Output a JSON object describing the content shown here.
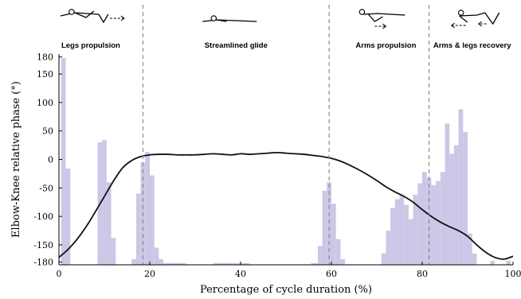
{
  "chart_data": {
    "type": "bar+line",
    "xlabel": "Percentage of cycle duration (%)",
    "ylabel": "Elbow-Knee relative phase (°)",
    "xlim": [
      0,
      100
    ],
    "ylim": [
      -185,
      185
    ],
    "x_ticks": [
      0,
      20,
      40,
      60,
      80,
      100
    ],
    "y_ticks": [
      180,
      150,
      100,
      50,
      0,
      -50,
      -100,
      -150,
      -180
    ],
    "grid": false,
    "phase_labels": [
      {
        "label": "Legs propulsion",
        "x_center": 7
      },
      {
        "label": "Streamlined glide",
        "x_center": 39
      },
      {
        "label": "Arms propulsion",
        "x_center": 72
      },
      {
        "label": "Arms & legs recovery",
        "x_center": 91
      }
    ],
    "phase_boundaries": [
      18.5,
      59.5,
      81.5
    ],
    "histogram": {
      "color": "#cac8e6",
      "baseline": -185,
      "bars": [
        {
          "x0": 0.5,
          "x1": 1.5,
          "y": 178
        },
        {
          "x0": 1.5,
          "x1": 2.5,
          "y": -16
        },
        {
          "x0": 8.5,
          "x1": 9.5,
          "y": 30
        },
        {
          "x0": 9.5,
          "x1": 10.5,
          "y": 34
        },
        {
          "x0": 10.5,
          "x1": 11.5,
          "y": -40
        },
        {
          "x0": 11.5,
          "x1": 12.5,
          "y": -138
        },
        {
          "x0": 16.0,
          "x1": 17.0,
          "y": -175
        },
        {
          "x0": 17.0,
          "x1": 18.0,
          "y": -60
        },
        {
          "x0": 18.0,
          "x1": 19.0,
          "y": -5
        },
        {
          "x0": 19.0,
          "x1": 20.0,
          "y": 13
        },
        {
          "x0": 20.0,
          "x1": 21.0,
          "y": -28
        },
        {
          "x0": 21.0,
          "x1": 22.0,
          "y": -155
        },
        {
          "x0": 22.0,
          "x1": 23.0,
          "y": -175
        },
        {
          "x0": 23.0,
          "x1": 28.0,
          "y": -182
        },
        {
          "x0": 34.0,
          "x1": 42.0,
          "y": -182
        },
        {
          "x0": 55.5,
          "x1": 57.0,
          "y": -182
        },
        {
          "x0": 57.0,
          "x1": 58.0,
          "y": -152
        },
        {
          "x0": 58.0,
          "x1": 59.0,
          "y": -55
        },
        {
          "x0": 59.0,
          "x1": 60.0,
          "y": -40
        },
        {
          "x0": 60.0,
          "x1": 61.0,
          "y": -78
        },
        {
          "x0": 61.0,
          "x1": 62.0,
          "y": -140
        },
        {
          "x0": 62.0,
          "x1": 63.0,
          "y": -175
        },
        {
          "x0": 71.0,
          "x1": 72.0,
          "y": -165
        },
        {
          "x0": 72.0,
          "x1": 73.0,
          "y": -125
        },
        {
          "x0": 73.0,
          "x1": 74.0,
          "y": -85
        },
        {
          "x0": 74.0,
          "x1": 75.0,
          "y": -70
        },
        {
          "x0": 75.0,
          "x1": 76.0,
          "y": -62
        },
        {
          "x0": 76.0,
          "x1": 77.0,
          "y": -80
        },
        {
          "x0": 77.0,
          "x1": 78.0,
          "y": -105
        },
        {
          "x0": 78.0,
          "x1": 79.0,
          "y": -62
        },
        {
          "x0": 79.0,
          "x1": 80.0,
          "y": -42
        },
        {
          "x0": 80.0,
          "x1": 81.0,
          "y": -22
        },
        {
          "x0": 81.0,
          "x1": 82.0,
          "y": -32
        },
        {
          "x0": 82.0,
          "x1": 83.0,
          "y": -45
        },
        {
          "x0": 83.0,
          "x1": 84.0,
          "y": -38
        },
        {
          "x0": 84.0,
          "x1": 85.0,
          "y": -22
        },
        {
          "x0": 85.0,
          "x1": 86.0,
          "y": 63
        },
        {
          "x0": 86.0,
          "x1": 87.0,
          "y": 10
        },
        {
          "x0": 87.0,
          "x1": 88.0,
          "y": 25
        },
        {
          "x0": 88.0,
          "x1": 89.0,
          "y": 88
        },
        {
          "x0": 89.0,
          "x1": 90.0,
          "y": 48
        },
        {
          "x0": 90.0,
          "x1": 91.0,
          "y": -130
        },
        {
          "x0": 91.0,
          "x1": 92.0,
          "y": -165
        },
        {
          "x0": 95.0,
          "x1": 96.0,
          "y": -178
        },
        {
          "x0": 98.5,
          "x1": 99.5,
          "y": -178
        }
      ]
    },
    "series": [
      {
        "color": "#111111",
        "x": [
          0,
          2,
          4,
          6,
          8,
          10,
          12,
          14,
          16,
          18,
          20,
          22,
          24,
          26,
          28,
          30,
          32,
          34,
          36,
          38,
          40,
          42,
          44,
          46,
          48,
          50,
          52,
          54,
          56,
          58,
          60,
          62,
          64,
          66,
          68,
          70,
          72,
          74,
          76,
          78,
          80,
          82,
          84,
          86,
          88,
          90,
          92,
          94,
          96,
          98,
          100
        ],
        "y": [
          -172,
          -158,
          -140,
          -118,
          -92,
          -65,
          -38,
          -15,
          -2,
          5,
          8,
          9,
          9,
          8,
          8,
          8,
          9,
          10,
          9,
          8,
          10,
          9,
          10,
          11,
          12,
          11,
          10,
          9,
          7,
          5,
          2,
          -3,
          -10,
          -18,
          -27,
          -37,
          -48,
          -57,
          -65,
          -75,
          -88,
          -100,
          -110,
          -118,
          -125,
          -135,
          -150,
          -163,
          -172,
          -175,
          -170
        ]
      }
    ]
  }
}
